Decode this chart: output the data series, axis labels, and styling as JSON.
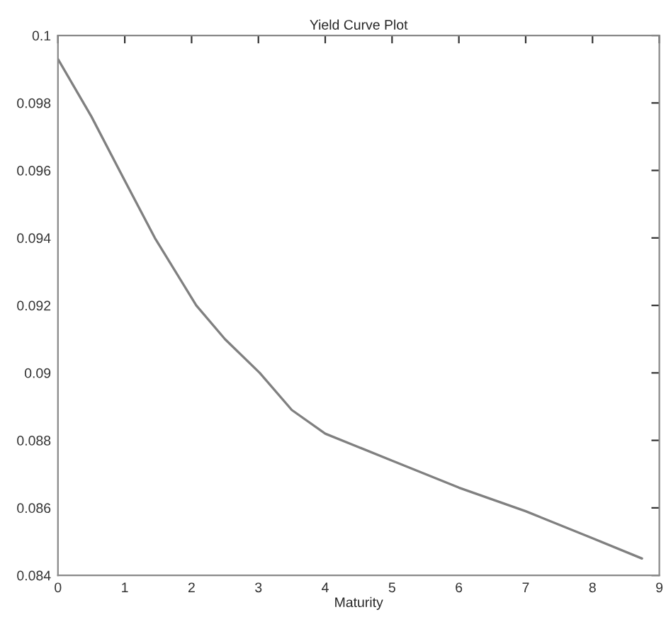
{
  "chart_data": {
    "type": "line",
    "title": "Yield Curve Plot",
    "xlabel": "Maturity",
    "x": [
      0,
      0.5,
      0.92,
      1.45,
      2.07,
      2.5,
      3.02,
      3.5,
      4,
      5,
      6,
      7,
      8,
      8.74
    ],
    "series": [
      {
        "color": "#808080",
        "values": [
          0.0993,
          0.0976,
          0.096,
          0.094,
          0.092,
          0.091,
          0.09,
          0.0889,
          0.0882,
          0.0874,
          0.0866,
          0.0859,
          0.0851,
          0.0845
        ]
      }
    ],
    "xlim": [
      0,
      9
    ],
    "xticks": [
      0,
      1,
      2,
      3,
      4,
      5,
      6,
      7,
      8,
      9
    ],
    "ylim": [
      0.084,
      0.1
    ],
    "yticks": [
      0.084,
      0.086,
      0.088,
      0.09,
      0.092,
      0.094,
      0.096,
      0.098,
      0.1
    ],
    "grid": false,
    "legend": false,
    "marker": "none",
    "line_style": "solid"
  }
}
